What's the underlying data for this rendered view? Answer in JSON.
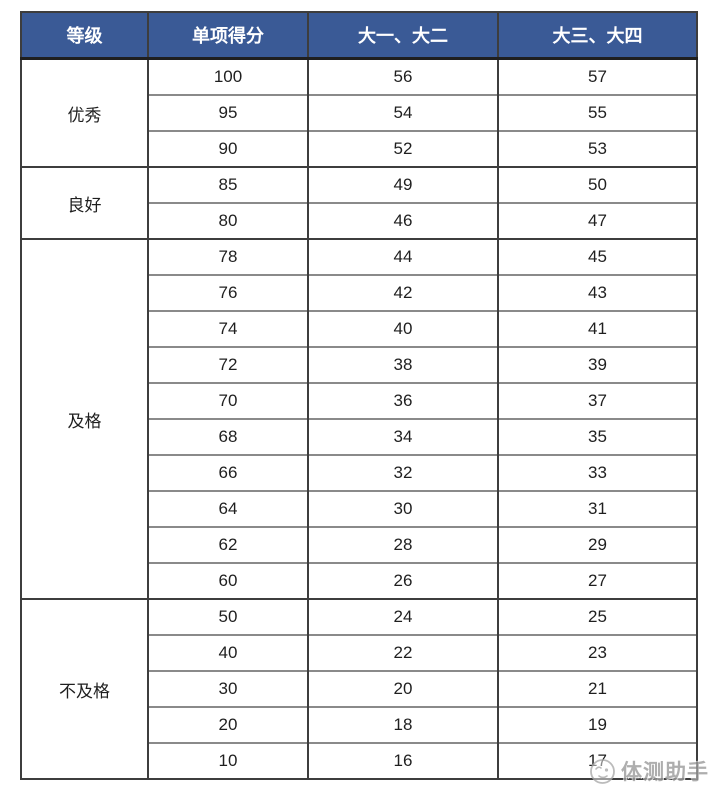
{
  "table": {
    "headers": [
      "等级",
      "单项得分",
      "大一、大二",
      "大三、大四"
    ],
    "groups": [
      {
        "grade": "优秀",
        "rows": [
          [
            "100",
            "56",
            "57"
          ],
          [
            "95",
            "54",
            "55"
          ],
          [
            "90",
            "52",
            "53"
          ]
        ]
      },
      {
        "grade": "良好",
        "rows": [
          [
            "85",
            "49",
            "50"
          ],
          [
            "80",
            "46",
            "47"
          ]
        ]
      },
      {
        "grade": "及格",
        "rows": [
          [
            "78",
            "44",
            "45"
          ],
          [
            "76",
            "42",
            "43"
          ],
          [
            "74",
            "40",
            "41"
          ],
          [
            "72",
            "38",
            "39"
          ],
          [
            "70",
            "36",
            "37"
          ],
          [
            "68",
            "34",
            "35"
          ],
          [
            "66",
            "32",
            "33"
          ],
          [
            "64",
            "30",
            "31"
          ],
          [
            "62",
            "28",
            "29"
          ],
          [
            "60",
            "26",
            "27"
          ]
        ]
      },
      {
        "grade": "不及格",
        "rows": [
          [
            "50",
            "24",
            "25"
          ],
          [
            "40",
            "22",
            "23"
          ],
          [
            "30",
            "20",
            "21"
          ],
          [
            "20",
            "18",
            "19"
          ],
          [
            "10",
            "16",
            "17"
          ]
        ]
      }
    ]
  },
  "watermark": {
    "text": "体测助手",
    "icon": "mascot-logo-icon"
  },
  "colors": {
    "header_bg": "#3A5A96",
    "header_text": "#FFFFFF",
    "border_dark": "#3D3D3D",
    "border_gray": "#8A8A8A",
    "text_color": "#1F1F1F",
    "watermark_color": "#9B9B9B"
  }
}
